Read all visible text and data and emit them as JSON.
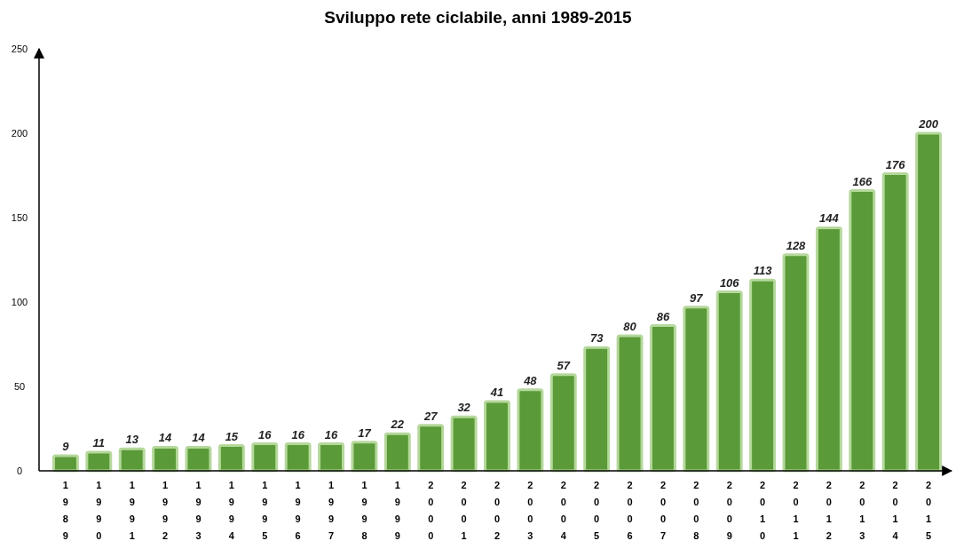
{
  "chart_data": {
    "type": "bar",
    "title": "Sviluppo rete ciclabile, anni 1989-2015",
    "categories": [
      "1989",
      "1990",
      "1991",
      "1992",
      "1993",
      "1994",
      "1995",
      "1996",
      "1997",
      "1998",
      "1999",
      "2000",
      "2001",
      "2002",
      "2003",
      "2004",
      "2005",
      "2006",
      "2007",
      "2008",
      "2009",
      "2010",
      "2011",
      "2012",
      "2013",
      "2014",
      "2015"
    ],
    "values": [
      9,
      11,
      13,
      14,
      14,
      15,
      16,
      16,
      16,
      17,
      22,
      27,
      32,
      41,
      48,
      57,
      73,
      80,
      86,
      97,
      106,
      113,
      128,
      144,
      166,
      176,
      200
    ],
    "color": "#5a9a38",
    "ylim": [
      0,
      250
    ],
    "yticks": [
      0,
      50,
      100,
      150,
      200,
      250
    ],
    "grid": false,
    "data_labels": true
  }
}
